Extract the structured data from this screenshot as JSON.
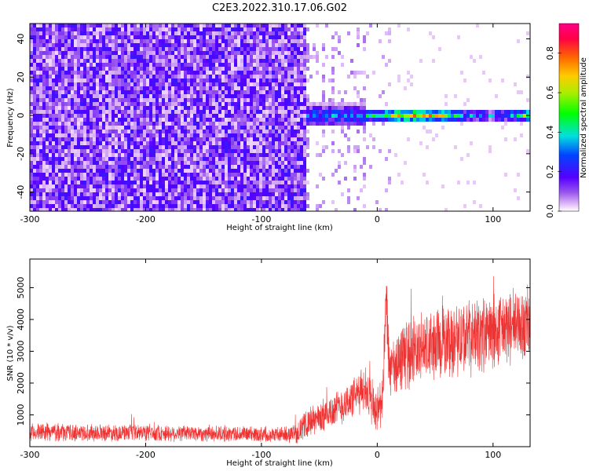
{
  "title": "C2E3.2022.310.17.06.G02",
  "chart_data": [
    {
      "type": "heatmap",
      "xlabel": "Height of straight line (km)",
      "ylabel": "Frequency (Hz)",
      "xlim": [
        -300,
        132
      ],
      "ylim": [
        -50,
        48
      ],
      "x_ticks": [
        -300,
        -200,
        -100,
        0,
        100
      ],
      "y_ticks": [
        -40,
        -20,
        0,
        20,
        40
      ],
      "colorbar": {
        "label": "Normalized spectral amplitude",
        "range": [
          0,
          0.95
        ],
        "ticks": [
          0.0,
          0.2,
          0.4,
          0.6,
          0.8
        ],
        "tick_labels": [
          "0.0",
          "0.2",
          "0.4",
          "0.6",
          "0.8"
        ]
      },
      "regions": [
        {
          "x_start": -300,
          "x_end": -62,
          "description": "broadband noise, amplitude ~0.05-0.15"
        },
        {
          "x_start": -62,
          "x_end": -10,
          "description": "sparse noise with emerging signal near 0 Hz, amplitude up to ~0.4"
        },
        {
          "x_start": -10,
          "x_end": 132,
          "description": "narrow signal band near 0 Hz, amplitude ~0.2-0.95"
        }
      ]
    },
    {
      "type": "line",
      "xlabel": "Height of straight line (km)",
      "ylabel": "SNR (10 * v/v)",
      "xlim": [
        -300,
        132
      ],
      "ylim": [
        0,
        5900
      ],
      "x_ticks": [
        -300,
        -200,
        -100,
        0,
        100
      ],
      "y_ticks": [
        1000,
        2000,
        3000,
        4000,
        5000
      ],
      "series": [
        {
          "color": "#ee3333",
          "x": [
            -300,
            -280,
            -260,
            -240,
            -220,
            -200,
            -180,
            -160,
            -140,
            -120,
            -100,
            -80,
            -70,
            -60,
            -50,
            -40,
            -30,
            -20,
            -15,
            -10,
            -5,
            0,
            5,
            8,
            10,
            15,
            20,
            30,
            40,
            50,
            60,
            70,
            80,
            90,
            100,
            110,
            120,
            132
          ],
          "values": [
            450,
            460,
            440,
            450,
            430,
            440,
            420,
            430,
            410,
            400,
            390,
            380,
            420,
            750,
            900,
            1100,
            1300,
            1550,
            1700,
            1900,
            1300,
            1100,
            1600,
            4800,
            2500,
            2300,
            2800,
            3000,
            3100,
            3200,
            3300,
            3400,
            3450,
            3500,
            3600,
            3700,
            3800,
            3850
          ],
          "spread": [
            300,
            310,
            300,
            300,
            290,
            300,
            290,
            290,
            280,
            280,
            270,
            270,
            350,
            500,
            550,
            600,
            650,
            700,
            750,
            800,
            900,
            900,
            1000,
            1000,
            1100,
            1100,
            1200,
            1200,
            1250,
            1300,
            1300,
            1300,
            1300,
            1300,
            1300,
            1300,
            1300,
            1300
          ]
        }
      ]
    }
  ]
}
